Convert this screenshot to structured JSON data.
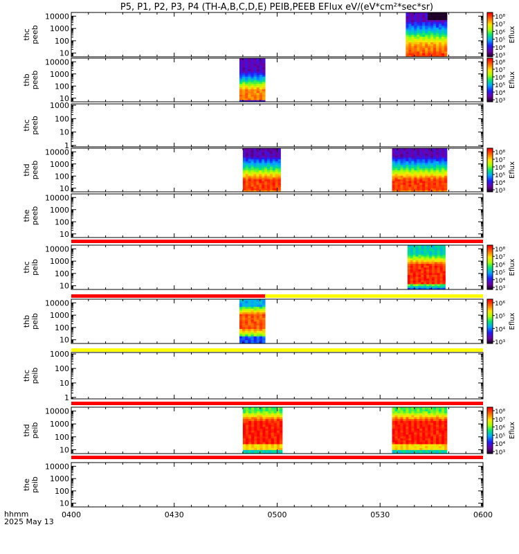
{
  "title": "P5, P1, P2, P3, P4 (TH-A,B,C,D,E) PEIB,PEEB EFlux eV/(eV*cm²*sec*sr)",
  "footer": {
    "hhmm": "hhmm",
    "date": "2025 May 13"
  },
  "colors": {
    "bar_red": "#ff0000",
    "bar_yellow": "#ffff00",
    "axis": "#000000"
  },
  "chart_data": {
    "type": "heatmap",
    "title": "P5, P1, P2, P3, P4 (TH-A,B,C,D,E) PEIB,PEEB EFlux eV/(eV*cm²*sec*sr)",
    "x_ticks": [
      "0400",
      "0430",
      "0500",
      "0530",
      "0600"
    ],
    "x_range_minutes": [
      0,
      120
    ],
    "colorbar_label": "Eflux",
    "panels": [
      {
        "id": "thc_peeb",
        "ylabel": [
          "thc",
          "peeb"
        ],
        "yticks": [
          "10000",
          "1000",
          "100",
          "10"
        ],
        "ylog": [
          0.7,
          4.3
        ],
        "blocks": [
          {
            "t": [
              97.5,
              109.5
            ],
            "profile": "peeb",
            "top_black": true
          }
        ],
        "colorbar": [
          "10⁸",
          "10⁷",
          "10⁶",
          "10⁵",
          "10⁴",
          "10³"
        ]
      },
      {
        "id": "thb_peeb",
        "ylabel": [
          "thb",
          "peeb"
        ],
        "yticks": [
          "10000",
          "1000",
          "100",
          "10"
        ],
        "ylog": [
          0.7,
          4.3
        ],
        "blocks": [
          {
            "t": [
              49,
              56.5
            ],
            "profile": "peeb_b"
          }
        ],
        "colorbar": [
          "10⁸",
          "10⁷",
          "10⁶",
          "10⁵",
          "10⁴",
          "10³"
        ]
      },
      {
        "id": "thc_peeb2",
        "ylabel": [
          "thc",
          "peeb"
        ],
        "yticks": [
          "1000",
          "100",
          "10",
          "1"
        ],
        "ylog": [
          -0.1,
          3.1
        ],
        "blocks": [],
        "colorbar": null
      },
      {
        "id": "thd_peeb",
        "ylabel": [
          "thd",
          "peeb"
        ],
        "yticks": [
          "10000",
          "1000",
          "100",
          "10"
        ],
        "ylog": [
          0.7,
          4.3
        ],
        "blocks": [
          {
            "t": [
              50,
              61
            ],
            "profile": "peeb_d"
          },
          {
            "t": [
              93.5,
              109.5
            ],
            "profile": "peeb_d"
          }
        ],
        "colorbar": [
          "10⁸",
          "10⁷",
          "10⁶",
          "10⁵",
          "10⁴",
          "10³"
        ]
      },
      {
        "id": "the_peeb",
        "ylabel": [
          "the",
          "peeb"
        ],
        "yticks": [
          "10000",
          "1000",
          "100",
          "10"
        ],
        "ylog": [
          0.7,
          4.3
        ],
        "blocks": [],
        "colorbar": null
      },
      {
        "id": "thc_peib",
        "ylabel": [
          "thc",
          "peib"
        ],
        "yticks": [
          "10000",
          "1000",
          "100",
          "10"
        ],
        "ylog": [
          0.7,
          4.3
        ],
        "blocks": [
          {
            "t": [
              98,
              109
            ],
            "profile": "peib"
          }
        ],
        "colorbar": [
          "10⁸",
          "10⁷",
          "10⁶",
          "10⁵",
          "10⁴",
          "10³"
        ]
      },
      {
        "id": "thb_peib",
        "ylabel": [
          "thb",
          "peib"
        ],
        "yticks": [
          "10000",
          "1000",
          "100",
          "10"
        ],
        "ylog": [
          0.7,
          4.3
        ],
        "blocks": [
          {
            "t": [
              49,
              56.5
            ],
            "profile": "peib_b"
          }
        ],
        "colorbar": [
          "10⁶",
          "10⁵",
          "10⁴",
          "10³"
        ]
      },
      {
        "id": "thc_peib2",
        "ylabel": [
          "thc",
          "peib"
        ],
        "yticks": [
          "1000",
          "100",
          "10",
          "1"
        ],
        "ylog": [
          -0.1,
          3.1
        ],
        "blocks": [],
        "colorbar": null
      },
      {
        "id": "thd_peib",
        "ylabel": [
          "thd",
          "peib"
        ],
        "yticks": [
          "10000",
          "1000",
          "100",
          "10"
        ],
        "ylog": [
          0.7,
          4.3
        ],
        "blocks": [
          {
            "t": [
              50,
              61.5
            ],
            "profile": "peib_d"
          },
          {
            "t": [
              93.5,
              109.5
            ],
            "profile": "peib_d"
          }
        ],
        "colorbar": [
          "10⁸",
          "10⁷",
          "10⁶",
          "10⁵",
          "10⁴",
          "10³"
        ]
      },
      {
        "id": "the_peib",
        "ylabel": [
          "the",
          "peib"
        ],
        "yticks": [
          "10000",
          "1000",
          "100",
          "10"
        ],
        "ylog": [
          0.7,
          4.3
        ],
        "blocks": [],
        "colorbar": null
      }
    ],
    "status_bars": [
      {
        "after_panel": 4,
        "segments": [
          {
            "t": [
              0,
              120
            ],
            "color": "red"
          }
        ]
      },
      {
        "after_panel": 5,
        "segments": [
          {
            "t": [
              0,
              56.5
            ],
            "color": "red"
          },
          {
            "t": [
              56.5,
              120
            ],
            "color": "yellow"
          }
        ]
      },
      {
        "after_panel": 6,
        "segments": [
          {
            "t": [
              0,
              120
            ],
            "color": "yellow"
          }
        ]
      },
      {
        "after_panel": 7,
        "segments": [
          {
            "t": [
              0,
              120
            ],
            "color": "red"
          }
        ]
      },
      {
        "after_panel": 8,
        "segments": [
          {
            "t": [
              0,
              120
            ],
            "color": "red"
          }
        ]
      }
    ]
  }
}
